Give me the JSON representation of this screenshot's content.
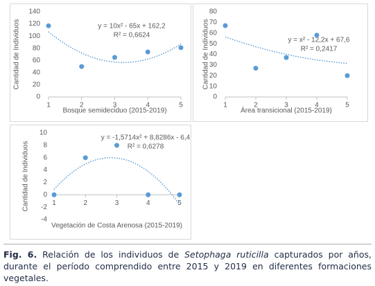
{
  "chart_data": [
    {
      "type": "scatter",
      "x": [
        1,
        2,
        3,
        4,
        5
      ],
      "values": [
        117,
        50,
        65,
        74,
        81
      ],
      "color": "#5b9bd5",
      "xlim": [
        1,
        5
      ],
      "ylim": [
        0,
        140
      ],
      "xticks": [
        1,
        2,
        3,
        4,
        5
      ],
      "yticks": [
        0,
        20,
        40,
        60,
        80,
        100,
        120,
        140
      ],
      "xlabel": "Bosque semideciduo (2015-2019)",
      "ylabel": "Cantidad de Individuos",
      "trendline": {
        "coefficients": [
          10,
          -65,
          162.2
        ],
        "equation": "y = 10x² - 65x + 162,2",
        "r2": "R² = 0,6624"
      }
    },
    {
      "type": "scatter",
      "x": [
        1,
        2,
        3,
        4,
        5
      ],
      "values": [
        67,
        27,
        37,
        58,
        20
      ],
      "color": "#5b9bd5",
      "xlim": [
        1,
        5
      ],
      "ylim": [
        0,
        80
      ],
      "xticks": [
        1,
        2,
        3,
        4,
        5
      ],
      "yticks": [
        0,
        10,
        20,
        30,
        40,
        50,
        60,
        70,
        80
      ],
      "xlabel": "Área transicional (2015-2019)",
      "ylabel": "Cantidad de Individuos",
      "trendline": {
        "coefficients": [
          1,
          -12.2,
          67.6
        ],
        "equation": "y = x² - 12,2x + 67,6",
        "r2": "R² = 0,2417"
      }
    },
    {
      "type": "scatter",
      "x": [
        1,
        2,
        3,
        4,
        5
      ],
      "values": [
        0,
        6,
        8,
        0,
        0
      ],
      "color": "#5b9bd5",
      "xlim": [
        1,
        5
      ],
      "ylim": [
        -4,
        10
      ],
      "xticks": [
        1,
        2,
        3,
        4,
        5
      ],
      "yticks": [
        -4,
        -2,
        0,
        2,
        4,
        6,
        8,
        10
      ],
      "xlabel": "Vegetación de Costa Arenosa (2015-2019)",
      "ylabel": "Cantidad de Individuos",
      "trendline": {
        "coefficients": [
          -1.5714,
          8.8286,
          -6.4
        ],
        "equation": "y = -1,5714x² + 8,8286x - 6,4",
        "r2": "R² = 0,6278"
      }
    }
  ],
  "caption": {
    "label": "Fig. 6.",
    "text_before": " Relación de los individuos de ",
    "species": "Setophaga ruticilla",
    "text_after": " capturados por años, durante el período comprendido entre 2015 y 2019 en diferentes formaciones vegetales."
  }
}
